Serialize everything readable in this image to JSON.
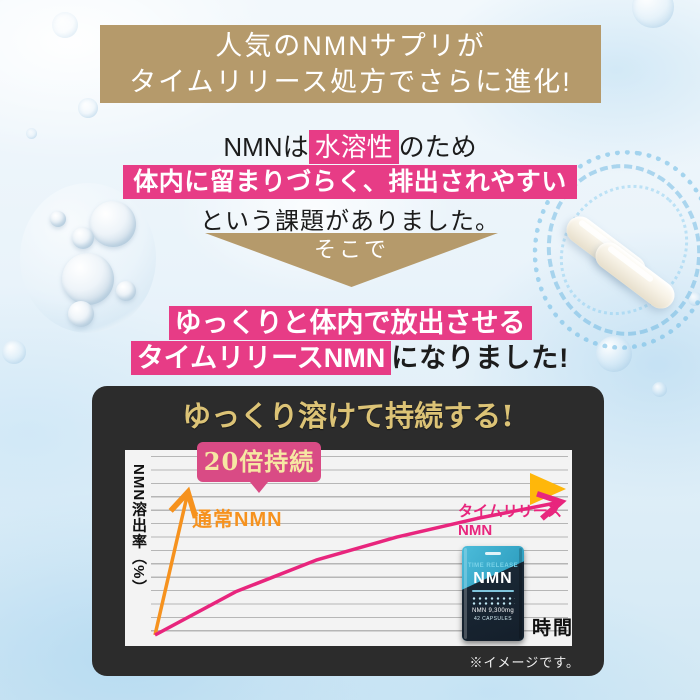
{
  "header": {
    "line1": "人気のNMNサプリが",
    "line2": "タイムリリース処方でさらに進化!"
  },
  "problem": {
    "line1_pre": "NMNは",
    "line1_highlight": "水溶性",
    "line1_post": "のため",
    "line2_highlight": "体内に留まりづらく、排出されやすい",
    "line3": "という課題がありました。"
  },
  "transition": {
    "label": "そこで"
  },
  "solution": {
    "line1_highlight": "ゆっくりと体内で放出させる",
    "line2_highlight": "タイムリリースNMN",
    "line2_post": "になりました!"
  },
  "graph": {
    "title": "ゆっくり溶けて持続する!",
    "badge": "20倍持続",
    "normal_label": "通常NMN",
    "timerelease_label_line1": "タイムリリース",
    "timerelease_label_line2": "NMN",
    "y_axis_label": "NMN溶出率（%）",
    "x_axis_label": "時間",
    "note": "※イメージです。"
  },
  "package": {
    "brand": "TIME RELEASE",
    "product": "NMN",
    "amount": "NMN 9,300mg",
    "capsules": "42 CAPSULES"
  },
  "colors": {
    "banner_bg": "#b59a6b",
    "highlight_pink": "#e73c86",
    "badge_pink": "#d94b85",
    "gold_title": "#dcc376",
    "normal_orange": "#f6921e",
    "timerelease_pink": "#e8257d",
    "arrow_yellow_start": "#fff0b0",
    "arrow_yellow_end": "#ffb70a",
    "graph_box_bg": "#2c2c2c"
  },
  "chart_data": {
    "type": "line",
    "title": "ゆっくり溶けて持続する!",
    "xlabel": "時間",
    "ylabel": "NMN溶出率（%）",
    "annotation": "20倍持続",
    "axis_numbers": false,
    "grid": "horizontal",
    "legend_position": "inline-labels",
    "x_domain": [
      0,
      20
    ],
    "y_domain": [
      0,
      100
    ],
    "series": [
      {
        "name": "通常NMN",
        "color": "#f6921e",
        "points_x": [
          0,
          1.6
        ],
        "points_y": [
          0,
          97
        ]
      },
      {
        "name": "タイムリリースNMN",
        "color": "#e8257d",
        "points_x": [
          0,
          4,
          8,
          12,
          16,
          20
        ],
        "points_y": [
          0,
          30,
          52,
          68,
          81,
          92
        ]
      }
    ]
  }
}
